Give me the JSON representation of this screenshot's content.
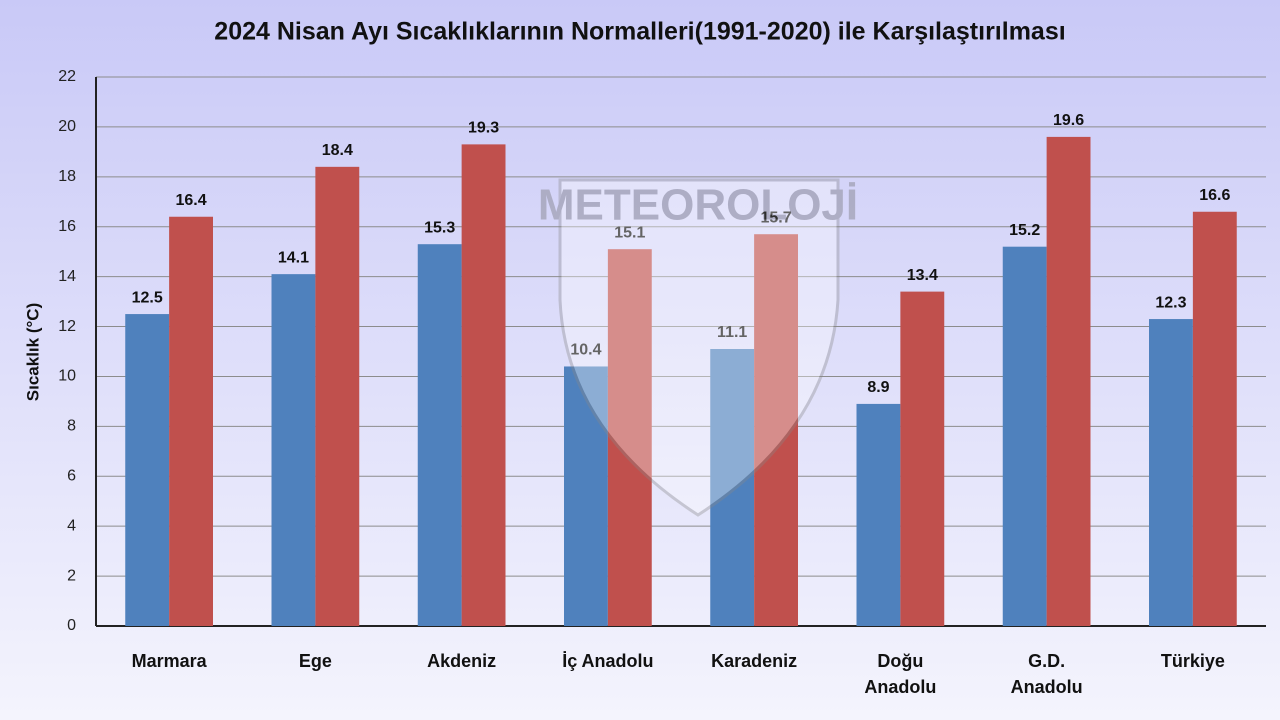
{
  "chart_data": {
    "type": "bar",
    "title": "2024 Nisan Ayı Sıcaklıklarının Normalleri(1991-2020) ile Karşılaştırılması",
    "y_label": "Sıcaklık (°C)",
    "watermark": "METEOROLOJİ",
    "categories": [
      "Marmara",
      "Ege",
      "Akdeniz",
      "İç Anadolu",
      "Karadeniz",
      "Doğu\nAnadolu",
      "G.D.\nAnadolu",
      "Türkiye"
    ],
    "series": [
      {
        "color": "#4f81bd",
        "values": [
          12.5,
          14.1,
          15.3,
          10.4,
          11.1,
          8.9,
          15.2,
          12.3
        ]
      },
      {
        "color": "#c0504d",
        "values": [
          16.4,
          18.4,
          19.3,
          15.1,
          15.7,
          13.4,
          19.6,
          16.6
        ]
      }
    ],
    "ylim": [
      0,
      22
    ],
    "yticks": [
      0,
      2,
      4,
      6,
      8,
      10,
      12,
      14,
      16,
      18,
      20,
      22
    ],
    "grid": true
  }
}
